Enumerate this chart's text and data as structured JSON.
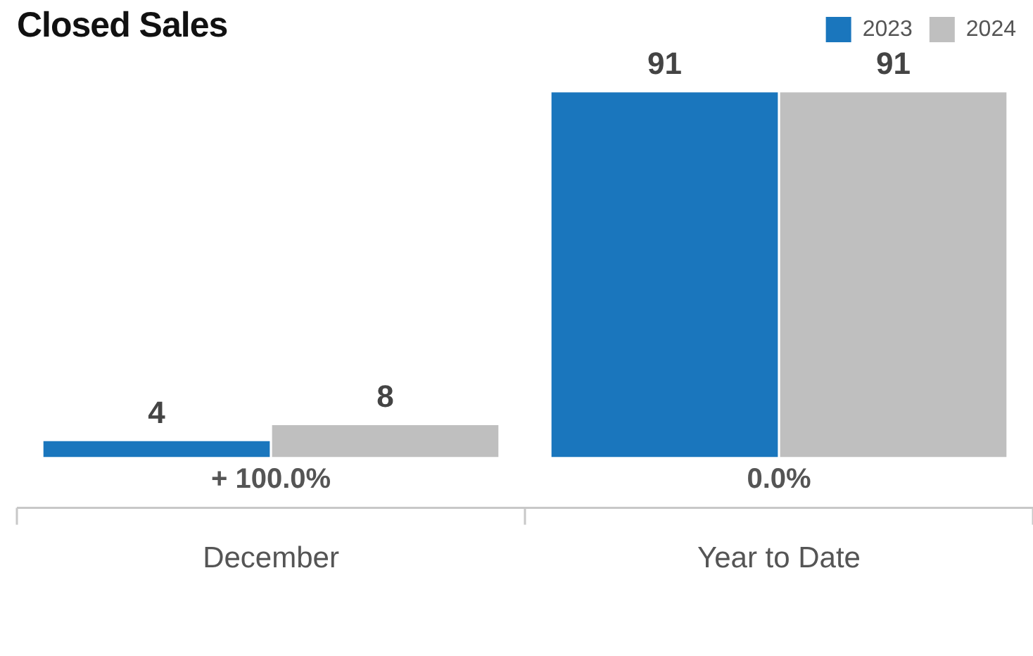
{
  "chart_data": {
    "type": "bar",
    "title": "Closed Sales",
    "categories": [
      "December",
      "Year to Date"
    ],
    "series": [
      {
        "name": "2023",
        "color": "#1a76bd",
        "values": [
          4,
          91
        ]
      },
      {
        "name": "2024",
        "color": "#bfbfbf",
        "values": [
          8,
          91
        ]
      }
    ],
    "data_labels": true,
    "legend": "top right",
    "annotations": [
      "+ 100.0%",
      "0.0%"
    ]
  }
}
